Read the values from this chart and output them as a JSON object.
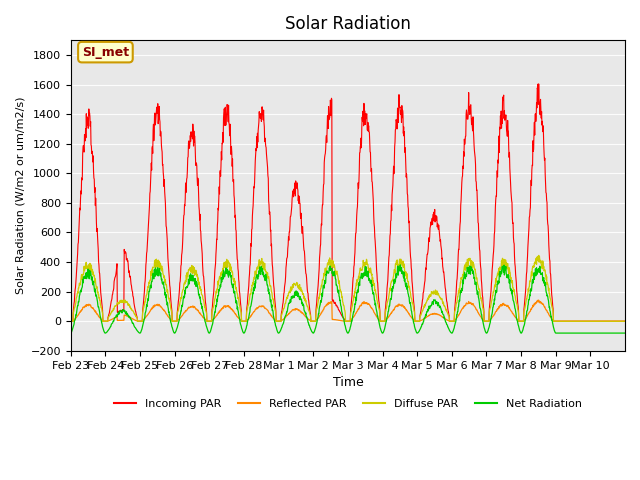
{
  "title": "Solar Radiation",
  "ylabel": "Solar Radiation (W/m2 or um/m2/s)",
  "xlabel": "Time",
  "ylim": [
    -200,
    1900
  ],
  "yticks": [
    -200,
    0,
    200,
    400,
    600,
    800,
    1000,
    1200,
    1400,
    1600,
    1800
  ],
  "background_color": "#e8e8e8",
  "annotation_text": "SI_met",
  "annotation_bg": "#ffffcc",
  "annotation_border": "#cc9900",
  "legend_entries": [
    "Incoming PAR",
    "Reflected PAR",
    "Diffuse PAR",
    "Net Radiation"
  ],
  "line_colors": [
    "#ff0000",
    "#ff8800",
    "#cccc00",
    "#00cc00"
  ],
  "num_days": 16,
  "points_per_day": 96,
  "date_labels": [
    "Feb 23",
    "Feb 24",
    "Feb 25",
    "Feb 26",
    "Feb 27",
    "Feb 28",
    "Mar 1",
    "Mar 2",
    "Mar 3",
    "Mar 4",
    "Mar 5",
    "Mar 6",
    "Mar 7",
    "Mar 8",
    "Mar 9",
    "Mar 10"
  ],
  "peak_heights": [
    1450,
    530,
    1520,
    1350,
    1510,
    1520,
    960,
    1540,
    1510,
    1550,
    760,
    1570,
    1540,
    1610,
    0,
    0
  ]
}
